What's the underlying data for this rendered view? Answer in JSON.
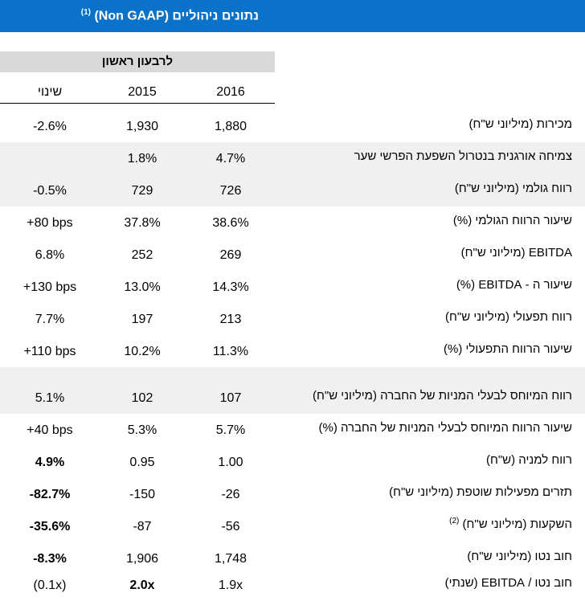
{
  "header": {
    "title": "נתונים ניהוליים (Non GAAP)",
    "note": "(1)"
  },
  "table": {
    "group_header": "לרבעון ראשון",
    "columns": [
      "2016",
      "2015",
      "שינוי"
    ],
    "rows": [
      {
        "label": "מכירות (מיליוני ש\"ח)",
        "values": [
          "1,880",
          "1,930",
          "-2.6%"
        ]
      },
      {
        "label": "צמיחה אורגנית בנטרול השפעת הפרשי שער",
        "values": [
          "4.7%",
          "1.8%"
        ]
      },
      {
        "label": "רווח גולמי (מיליוני ש\"ח)",
        "values": [
          "726",
          "729",
          "-0.5%"
        ]
      },
      {
        "label": "שיעור הרווח הגולמי (%)",
        "values": [
          "38.6%",
          "37.8%",
          "+80 bps"
        ]
      },
      {
        "label": "EBITDA (מיליוני ש\"ח)",
        "values": [
          "269",
          "252",
          "6.8%"
        ]
      },
      {
        "label": "שיעור ה - EBITDA (%)",
        "values": [
          "14.3%",
          "13.0%",
          "+130 bps"
        ]
      },
      {
        "label": "רווח תפעולי (מיליוני ש\"ח)",
        "values": [
          "213",
          "197",
          "7.7%"
        ]
      },
      {
        "label": "שיעור הרווח התפעולי (%)",
        "values": [
          "11.3%",
          "10.2%",
          "+110 bps"
        ]
      },
      {
        "label": "רווח המיוחס לבעלי המניות של החברה (מיליוני ש\"ח)",
        "values": [
          "107",
          "102",
          "5.1%"
        ]
      },
      {
        "label": "שיעור הרווח המיוחס לבעלי המניות של החברה (%)",
        "values": [
          "5.7%",
          "5.3%",
          "+40 bps"
        ]
      },
      {
        "label": "רווח למניה (ש\"ח)",
        "values": [
          "1.00",
          "0.95",
          "4.9%"
        ],
        "bold": [
          2
        ]
      },
      {
        "label": "תזרים מפעילות שוטפת (מיליוני ש\"ח)",
        "values": [
          "-26",
          "-150",
          "-82.7%"
        ],
        "bold": [
          2
        ]
      },
      {
        "label": "השקעות (מיליוני ש\"ח)",
        "note": "(2)",
        "values": [
          "-56",
          "-87",
          "-35.6%"
        ],
        "bold": [
          2
        ]
      },
      {
        "label": "חוב נטו (מיליוני ש\"ח)",
        "values": [
          "1,748",
          "1,906",
          "-8.3%"
        ],
        "bold": [
          2
        ]
      },
      {
        "label": "חוב נטו / EBITDA (שנתי)",
        "values": [
          "1.9x",
          "2.0x",
          "(0.1x)"
        ],
        "bold": [
          1
        ]
      }
    ]
  }
}
